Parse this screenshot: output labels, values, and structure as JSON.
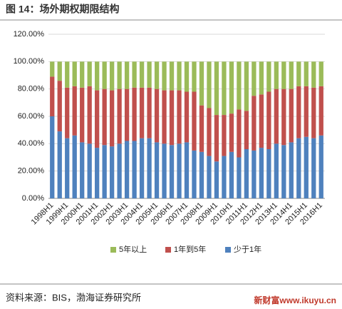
{
  "chart_data": {
    "type": "bar",
    "stacked": true,
    "title": "图 14：场外期权期限结构",
    "source": "资料来源：BIS，渤海证券研究所",
    "watermark": "新财富www.ikuyu.cn",
    "categories": [
      "1998H1",
      null,
      "1999H1",
      null,
      "2000H1",
      null,
      "2001H1",
      null,
      "2002H1",
      null,
      "2003H1",
      null,
      "2004H1",
      null,
      "2005H1",
      null,
      "2006H1",
      null,
      "2007H1",
      null,
      "2008H1",
      null,
      "2009H1",
      null,
      "2010H1",
      null,
      "2011H1",
      null,
      "2012H1",
      null,
      "2013H1",
      null,
      "2014H1",
      null,
      "2015H1",
      null,
      "2016H1"
    ],
    "series": [
      {
        "name": "少于1年",
        "color": "#4f81bd",
        "values": [
          60,
          49,
          44,
          46,
          41,
          40,
          37,
          39,
          38,
          40,
          42,
          42,
          44,
          44,
          41,
          40,
          39,
          40,
          41,
          35,
          34,
          31,
          27,
          31,
          34,
          30,
          36,
          35,
          37,
          36,
          40,
          39,
          41,
          44,
          45,
          44,
          46
        ]
      },
      {
        "name": "1年到5年",
        "color": "#c0504d",
        "values": [
          29,
          37,
          37,
          36,
          40,
          42,
          42,
          41,
          41,
          40,
          38,
          39,
          37,
          37,
          39,
          39,
          40,
          39,
          37,
          43,
          34,
          35,
          34,
          30,
          28,
          35,
          28,
          40,
          39,
          42,
          40,
          41,
          39,
          38,
          37,
          37,
          36
        ]
      },
      {
        "name": "5年以上",
        "color": "#9bbb59",
        "values": [
          11,
          14,
          19,
          18,
          19,
          18,
          21,
          20,
          21,
          20,
          20,
          19,
          19,
          19,
          20,
          21,
          21,
          21,
          22,
          22,
          32,
          34,
          39,
          39,
          38,
          35,
          36,
          25,
          24,
          22,
          20,
          20,
          20,
          18,
          18,
          19,
          18
        ]
      }
    ],
    "ylim": [
      0,
      120
    ],
    "yticks": [
      {
        "value": 0,
        "label": "0.00%"
      },
      {
        "value": 20,
        "label": "20.00%"
      },
      {
        "value": 40,
        "label": "40.00%"
      },
      {
        "value": 60,
        "label": "60.00%"
      },
      {
        "value": 80,
        "label": "80.00%"
      },
      {
        "value": 100,
        "label": "100.00%"
      },
      {
        "value": 120,
        "label": "120.00%"
      }
    ],
    "grid": true,
    "legend": "bottom"
  }
}
